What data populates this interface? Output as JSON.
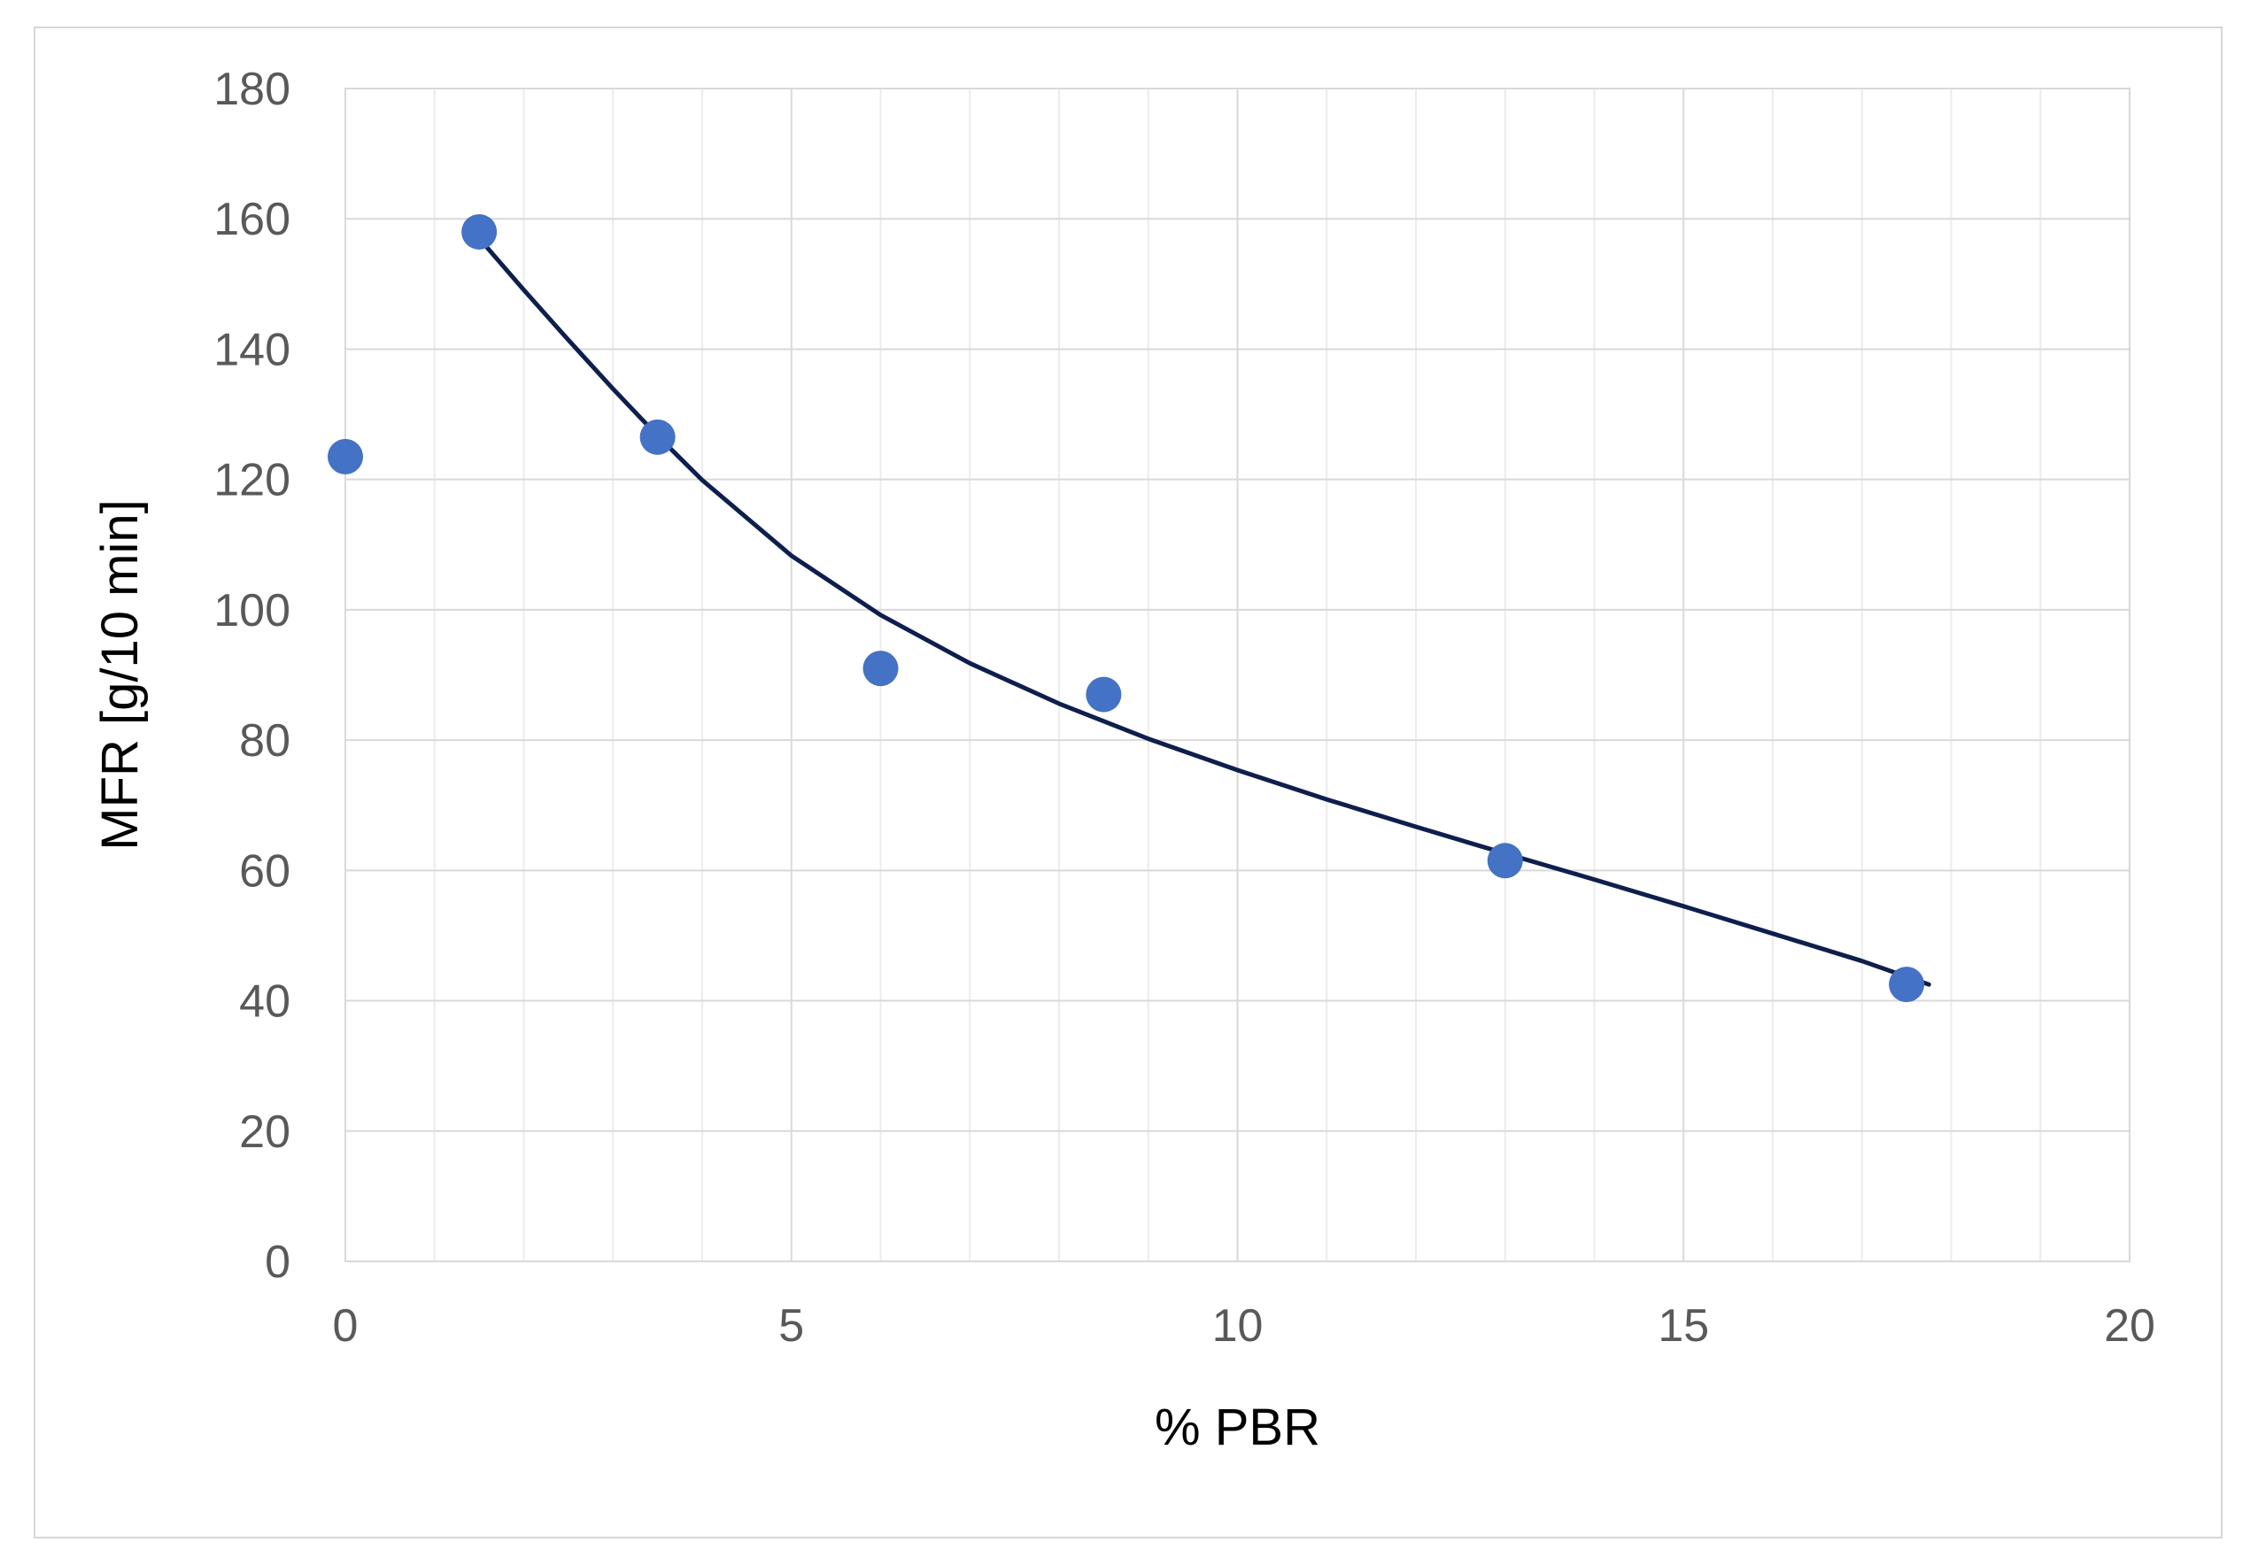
{
  "chart_data": {
    "type": "scatter",
    "title": "",
    "xlabel": "% PBR",
    "ylabel": "MFR [g/10 min]",
    "xlim": [
      0,
      20
    ],
    "ylim": [
      0,
      180
    ],
    "x_ticks": [
      "0",
      "5",
      "10",
      "15",
      "20"
    ],
    "y_ticks": [
      "0",
      "20",
      "40",
      "60",
      "80",
      "100",
      "120",
      "140",
      "160",
      "180"
    ],
    "grid": true,
    "legend": "none",
    "series": [
      {
        "type": "scatter",
        "x": [
          0,
          1.5,
          3.5,
          6,
          8.5,
          13,
          17.5
        ],
        "y": [
          123.5,
          158,
          126.5,
          91,
          87,
          61.5,
          42.5
        ],
        "color": "#4472c4"
      },
      {
        "type": "line",
        "trendline": "power",
        "x": [
          1.5,
          2,
          2.5,
          3,
          3.5,
          4,
          5,
          6,
          7,
          8,
          9,
          10,
          11,
          12,
          13,
          14,
          15,
          16,
          17,
          17.75
        ],
        "y": [
          157,
          149.1,
          141.4,
          133.9,
          126.7,
          119.9,
          108.3,
          99.2,
          91.8,
          85.6,
          80.2,
          75.4,
          70.9,
          66.7,
          62.6,
          58.6,
          54.5,
          50.3,
          46.1,
          42.5
        ],
        "color": "#0e1f4d"
      }
    ]
  }
}
